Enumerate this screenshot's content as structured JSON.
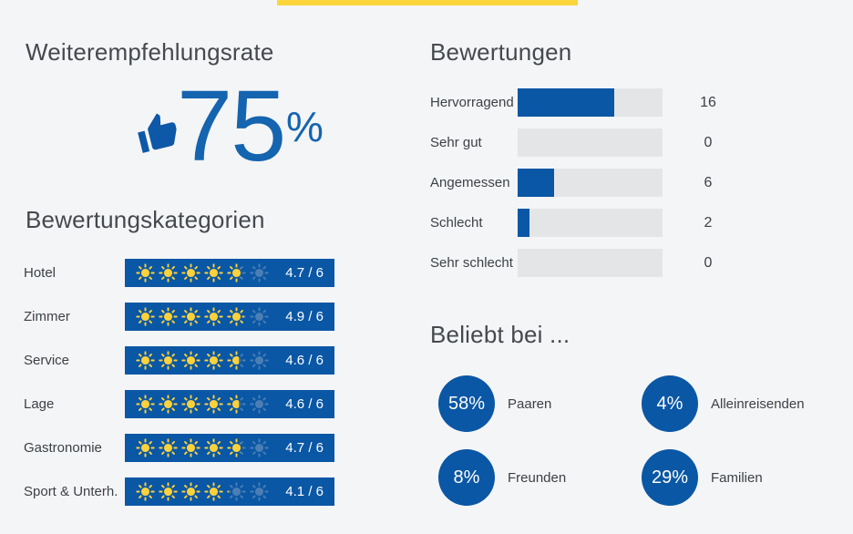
{
  "recommendation": {
    "title": "Weiterempfehlungsrate",
    "value": "75",
    "unit": "%",
    "icon": "thumbs-up-icon"
  },
  "categories": {
    "title": "Bewertungskategorien",
    "max": 6,
    "items": [
      {
        "label": "Hotel",
        "value": 4.7,
        "display": "4.7 / 6"
      },
      {
        "label": "Zimmer",
        "value": 4.9,
        "display": "4.9 / 6"
      },
      {
        "label": "Service",
        "value": 4.6,
        "display": "4.6 / 6"
      },
      {
        "label": "Lage",
        "value": 4.6,
        "display": "4.6 / 6"
      },
      {
        "label": "Gastronomie",
        "value": 4.7,
        "display": "4.7 / 6"
      },
      {
        "label": "Sport & Unterh.",
        "value": 4.1,
        "display": "4.1 / 6"
      }
    ]
  },
  "ratings": {
    "title": "Bewertungen",
    "items": [
      {
        "label": "Hervorragend",
        "count": 16
      },
      {
        "label": "Sehr gut",
        "count": 0
      },
      {
        "label": "Angemessen",
        "count": 6
      },
      {
        "label": "Schlecht",
        "count": 2
      },
      {
        "label": "Sehr schlecht",
        "count": 0
      }
    ]
  },
  "popularity": {
    "title": "Beliebt bei ...",
    "items": [
      {
        "percent": "58%",
        "label": "Paaren"
      },
      {
        "percent": "4%",
        "label": "Alleinreisenden"
      },
      {
        "percent": "8%",
        "label": "Freunden"
      },
      {
        "percent": "29%",
        "label": "Familien"
      }
    ]
  },
  "colors": {
    "primary_blue": "#0a57a5",
    "number_blue": "#1464b0",
    "accent_yellow": "#fbd53a",
    "sun_yellow": "#fcd13a",
    "sun_faded": "#4b7fb3",
    "track_gray": "#e3e5e7",
    "background": "#f4f5f6",
    "text": "#3c4147"
  },
  "chart_data": [
    {
      "type": "bar",
      "orientation": "horizontal",
      "title": "Bewertungen",
      "categories": [
        "Hervorragend",
        "Sehr gut",
        "Angemessen",
        "Schlecht",
        "Sehr schlecht"
      ],
      "values": [
        16,
        0,
        6,
        2,
        0
      ],
      "xlabel": "",
      "ylabel": "",
      "grid": false,
      "legend_position": "none",
      "note": "bar fill proportional to count of total 24 reviews"
    },
    {
      "type": "bar",
      "orientation": "horizontal",
      "title": "Bewertungskategorien",
      "categories": [
        "Hotel",
        "Zimmer",
        "Service",
        "Lage",
        "Gastronomie",
        "Sport & Unterh."
      ],
      "values": [
        4.7,
        4.9,
        4.6,
        4.6,
        4.7,
        4.1
      ],
      "xlim": [
        0,
        6
      ],
      "note": "sun icon rating out of 6"
    },
    {
      "type": "table",
      "title": "Beliebt bei ...",
      "categories": [
        "Paaren",
        "Alleinreisenden",
        "Freunden",
        "Familien"
      ],
      "values": [
        58,
        4,
        8,
        29
      ]
    }
  ]
}
